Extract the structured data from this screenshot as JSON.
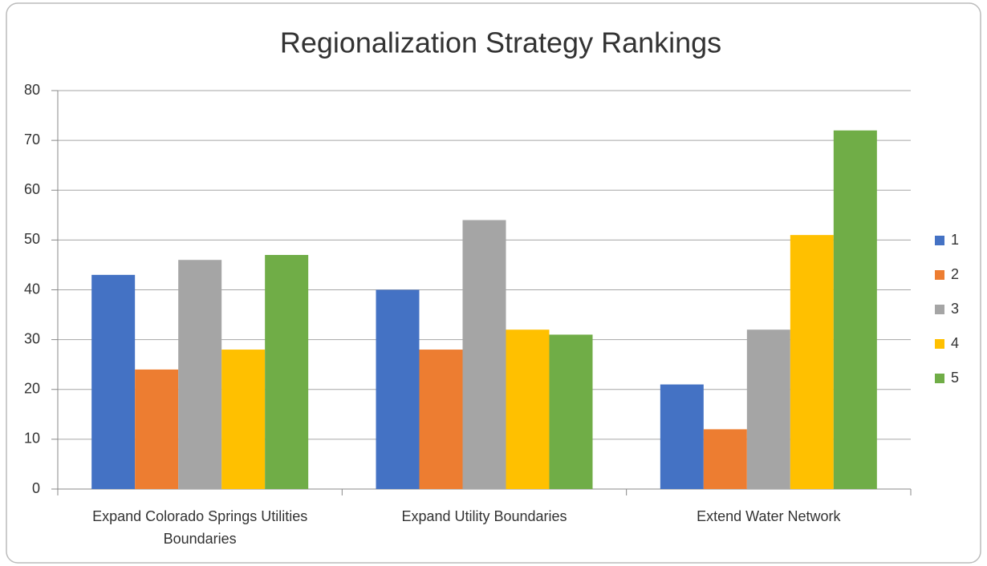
{
  "chart_data": {
    "type": "bar",
    "title": "Regionalization Strategy Rankings",
    "categories": [
      "Expand Colorado Springs Utilities Boundaries",
      "Expand Utility Boundaries",
      "Extend Water Network"
    ],
    "series": [
      {
        "name": "1",
        "color": "#4472c4",
        "values": [
          43,
          40,
          21
        ]
      },
      {
        "name": "2",
        "color": "#ed7d31",
        "values": [
          24,
          28,
          12
        ]
      },
      {
        "name": "3",
        "color": "#a5a5a5",
        "values": [
          46,
          54,
          32
        ]
      },
      {
        "name": "4",
        "color": "#ffc000",
        "values": [
          28,
          32,
          51
        ]
      },
      {
        "name": "5",
        "color": "#70ad47",
        "values": [
          47,
          31,
          72
        ]
      }
    ],
    "ylim": [
      0,
      80
    ],
    "yticks": [
      0,
      10,
      20,
      30,
      40,
      50,
      60,
      70,
      80
    ],
    "grid": true,
    "legend": "right"
  }
}
